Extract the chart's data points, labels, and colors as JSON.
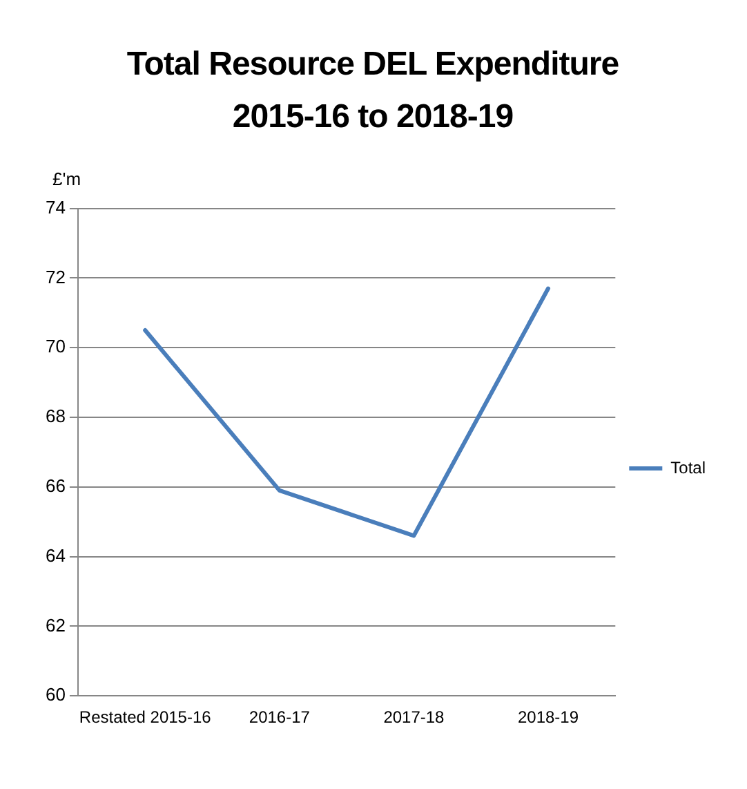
{
  "chart_data": {
    "type": "line",
    "title": "Total Resource DEL Expenditure 2015-16 to 2018-19",
    "ylabel": "£'m",
    "categories": [
      "Restated 2015-16",
      "2016-17",
      "2017-18",
      "2018-19"
    ],
    "series": [
      {
        "name": "Total",
        "color": "#4a7ebb",
        "values": [
          70.5,
          65.9,
          64.6,
          71.7
        ]
      }
    ],
    "ylim": [
      60,
      74
    ],
    "yticks": [
      60,
      62,
      64,
      66,
      68,
      70,
      72,
      74
    ],
    "grid": "y",
    "legend": "right",
    "marker": "none",
    "line_style": "solid"
  }
}
